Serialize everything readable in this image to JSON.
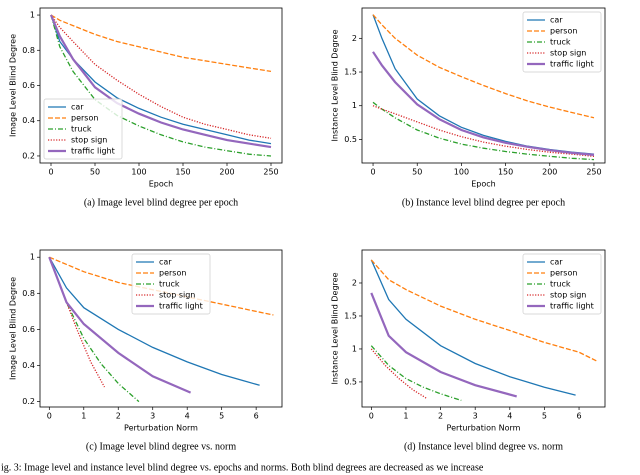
{
  "chart_data": [
    {
      "type": "line",
      "subcaption": "(a) Image level blind degree per epoch",
      "xlabel": "Epoch",
      "ylabel": "Image Level Blind Degree",
      "x": [
        0,
        10,
        25,
        50,
        75,
        100,
        125,
        150,
        175,
        200,
        225,
        250
      ],
      "xlim": [
        -12.5,
        262.5
      ],
      "xticks": [
        0,
        50,
        100,
        150,
        200,
        250
      ],
      "ylim": [
        0.16,
        1.04
      ],
      "yticks": [
        0.2,
        0.4,
        0.6,
        0.8,
        1.0
      ],
      "legend": "lower left",
      "series": [
        {
          "name": "car",
          "color": "#1f77b4",
          "linestyle": "solid",
          "values": [
            1.0,
            0.85,
            0.75,
            0.62,
            0.53,
            0.47,
            0.42,
            0.38,
            0.35,
            0.32,
            0.29,
            0.27
          ]
        },
        {
          "name": "person",
          "color": "#ff7f0e",
          "linestyle": "dashed",
          "values": [
            1.0,
            0.97,
            0.94,
            0.89,
            0.85,
            0.82,
            0.79,
            0.76,
            0.74,
            0.72,
            0.7,
            0.68
          ]
        },
        {
          "name": "truck",
          "color": "#2ca02c",
          "linestyle": "dashdot",
          "values": [
            1.0,
            0.82,
            0.68,
            0.52,
            0.43,
            0.37,
            0.32,
            0.28,
            0.25,
            0.23,
            0.21,
            0.2
          ]
        },
        {
          "name": "stop sign",
          "color": "#d62728",
          "linestyle": "dotted",
          "values": [
            1.0,
            0.93,
            0.85,
            0.72,
            0.63,
            0.55,
            0.48,
            0.42,
            0.38,
            0.35,
            0.32,
            0.3
          ]
        },
        {
          "name": "traffic light",
          "color": "#9467bd",
          "linestyle": "solid",
          "values": [
            1.0,
            0.88,
            0.75,
            0.59,
            0.5,
            0.44,
            0.39,
            0.35,
            0.32,
            0.29,
            0.27,
            0.25
          ]
        }
      ]
    },
    {
      "type": "line",
      "subcaption": "(b) Instance level blind degree per epoch",
      "xlabel": "Epoch",
      "ylabel": "Instance Level Blind Degree",
      "x": [
        0,
        10,
        25,
        50,
        75,
        100,
        125,
        150,
        175,
        200,
        225,
        250
      ],
      "xlim": [
        -12.5,
        262.5
      ],
      "xticks": [
        0,
        50,
        100,
        150,
        200,
        250
      ],
      "ylim": [
        0.15,
        2.45
      ],
      "yticks": [
        0.5,
        1.0,
        1.5,
        2.0
      ],
      "legend": "upper right",
      "series": [
        {
          "name": "car",
          "color": "#1f77b4",
          "linestyle": "solid",
          "values": [
            2.35,
            2.0,
            1.55,
            1.1,
            0.85,
            0.68,
            0.56,
            0.47,
            0.4,
            0.35,
            0.31,
            0.28
          ]
        },
        {
          "name": "person",
          "color": "#ff7f0e",
          "linestyle": "dashed",
          "values": [
            2.35,
            2.2,
            2.0,
            1.75,
            1.57,
            1.43,
            1.3,
            1.18,
            1.07,
            0.98,
            0.9,
            0.82
          ]
        },
        {
          "name": "truck",
          "color": "#2ca02c",
          "linestyle": "dashdot",
          "values": [
            1.05,
            0.95,
            0.82,
            0.64,
            0.52,
            0.43,
            0.37,
            0.32,
            0.28,
            0.25,
            0.22,
            0.2
          ]
        },
        {
          "name": "stop sign",
          "color": "#d62728",
          "linestyle": "dotted",
          "values": [
            1.0,
            0.95,
            0.88,
            0.76,
            0.64,
            0.54,
            0.46,
            0.4,
            0.35,
            0.31,
            0.28,
            0.25
          ]
        },
        {
          "name": "traffic light",
          "color": "#9467bd",
          "linestyle": "solid",
          "values": [
            1.8,
            1.6,
            1.35,
            1.02,
            0.8,
            0.64,
            0.53,
            0.45,
            0.39,
            0.34,
            0.3,
            0.27
          ]
        }
      ]
    },
    {
      "type": "line",
      "subcaption": "(c) Image level blind degree vs. norm",
      "xlabel": "Perturbation Norm",
      "ylabel": "Image Level Blind Degree",
      "xlim": [
        -0.27,
        6.75
      ],
      "xticks": [
        0,
        1,
        2,
        3,
        4,
        5,
        6
      ],
      "ylim": [
        0.17,
        1.04
      ],
      "yticks": [
        0.2,
        0.4,
        0.6,
        0.8,
        1.0
      ],
      "legend": "upper center",
      "series": [
        {
          "name": "car",
          "color": "#1f77b4",
          "linestyle": "solid",
          "x": [
            0,
            0.5,
            1,
            2,
            3,
            4,
            5,
            6.1
          ],
          "values": [
            1.0,
            0.83,
            0.72,
            0.6,
            0.5,
            0.42,
            0.35,
            0.29
          ]
        },
        {
          "name": "person",
          "color": "#ff7f0e",
          "linestyle": "dashed",
          "x": [
            0,
            1,
            2,
            3,
            4,
            5,
            6,
            6.5
          ],
          "values": [
            1.0,
            0.92,
            0.86,
            0.82,
            0.78,
            0.74,
            0.7,
            0.68
          ]
        },
        {
          "name": "truck",
          "color": "#2ca02c",
          "linestyle": "dashdot",
          "x": [
            0,
            0.5,
            1,
            1.5,
            2,
            2.6
          ],
          "values": [
            1.0,
            0.75,
            0.55,
            0.41,
            0.3,
            0.2
          ]
        },
        {
          "name": "stop sign",
          "color": "#d62728",
          "linestyle": "dotted",
          "x": [
            0,
            0.4,
            0.8,
            1.2,
            1.6
          ],
          "values": [
            1.0,
            0.8,
            0.6,
            0.42,
            0.28
          ]
        },
        {
          "name": "traffic light",
          "color": "#9467bd",
          "linestyle": "solid",
          "x": [
            0,
            0.5,
            1,
            2,
            3,
            4.1
          ],
          "values": [
            1.0,
            0.75,
            0.63,
            0.47,
            0.34,
            0.25
          ]
        }
      ]
    },
    {
      "type": "line",
      "subcaption": "(d) Instance level blind degree vs. norm",
      "xlabel": "Perturbation Norm",
      "ylabel": "Instance Level Blind Degree",
      "xlim": [
        -0.27,
        6.75
      ],
      "xticks": [
        0,
        1,
        2,
        3,
        4,
        5,
        6
      ],
      "ylim": [
        0.12,
        2.5
      ],
      "yticks": [
        0.5,
        1.0,
        1.5,
        2.0
      ],
      "legend": "upper right",
      "series": [
        {
          "name": "car",
          "color": "#1f77b4",
          "linestyle": "solid",
          "x": [
            0,
            0.5,
            1,
            2,
            3,
            4,
            5,
            5.9
          ],
          "values": [
            2.35,
            1.75,
            1.45,
            1.05,
            0.78,
            0.58,
            0.42,
            0.3
          ]
        },
        {
          "name": "person",
          "color": "#ff7f0e",
          "linestyle": "dashed",
          "x": [
            0,
            0.5,
            1,
            2,
            3,
            4,
            5,
            6,
            6.5
          ],
          "values": [
            2.35,
            2.05,
            1.9,
            1.65,
            1.45,
            1.28,
            1.1,
            0.95,
            0.82
          ]
        },
        {
          "name": "truck",
          "color": "#2ca02c",
          "linestyle": "dashdot",
          "x": [
            0,
            0.5,
            1,
            1.5,
            2,
            2.6
          ],
          "values": [
            1.05,
            0.75,
            0.55,
            0.42,
            0.32,
            0.22
          ]
        },
        {
          "name": "stop sign",
          "color": "#d62728",
          "linestyle": "dotted",
          "x": [
            0,
            0.4,
            0.8,
            1.2,
            1.6
          ],
          "values": [
            1.0,
            0.75,
            0.55,
            0.38,
            0.25
          ]
        },
        {
          "name": "traffic light",
          "color": "#9467bd",
          "linestyle": "solid",
          "x": [
            0,
            0.5,
            1,
            2,
            3,
            4.2
          ],
          "values": [
            1.85,
            1.2,
            0.95,
            0.65,
            0.45,
            0.28
          ]
        }
      ]
    }
  ],
  "caption": "ig. 3: Image level and instance level blind degree vs. epochs and norms. Both blind degrees are decreased as we increase"
}
